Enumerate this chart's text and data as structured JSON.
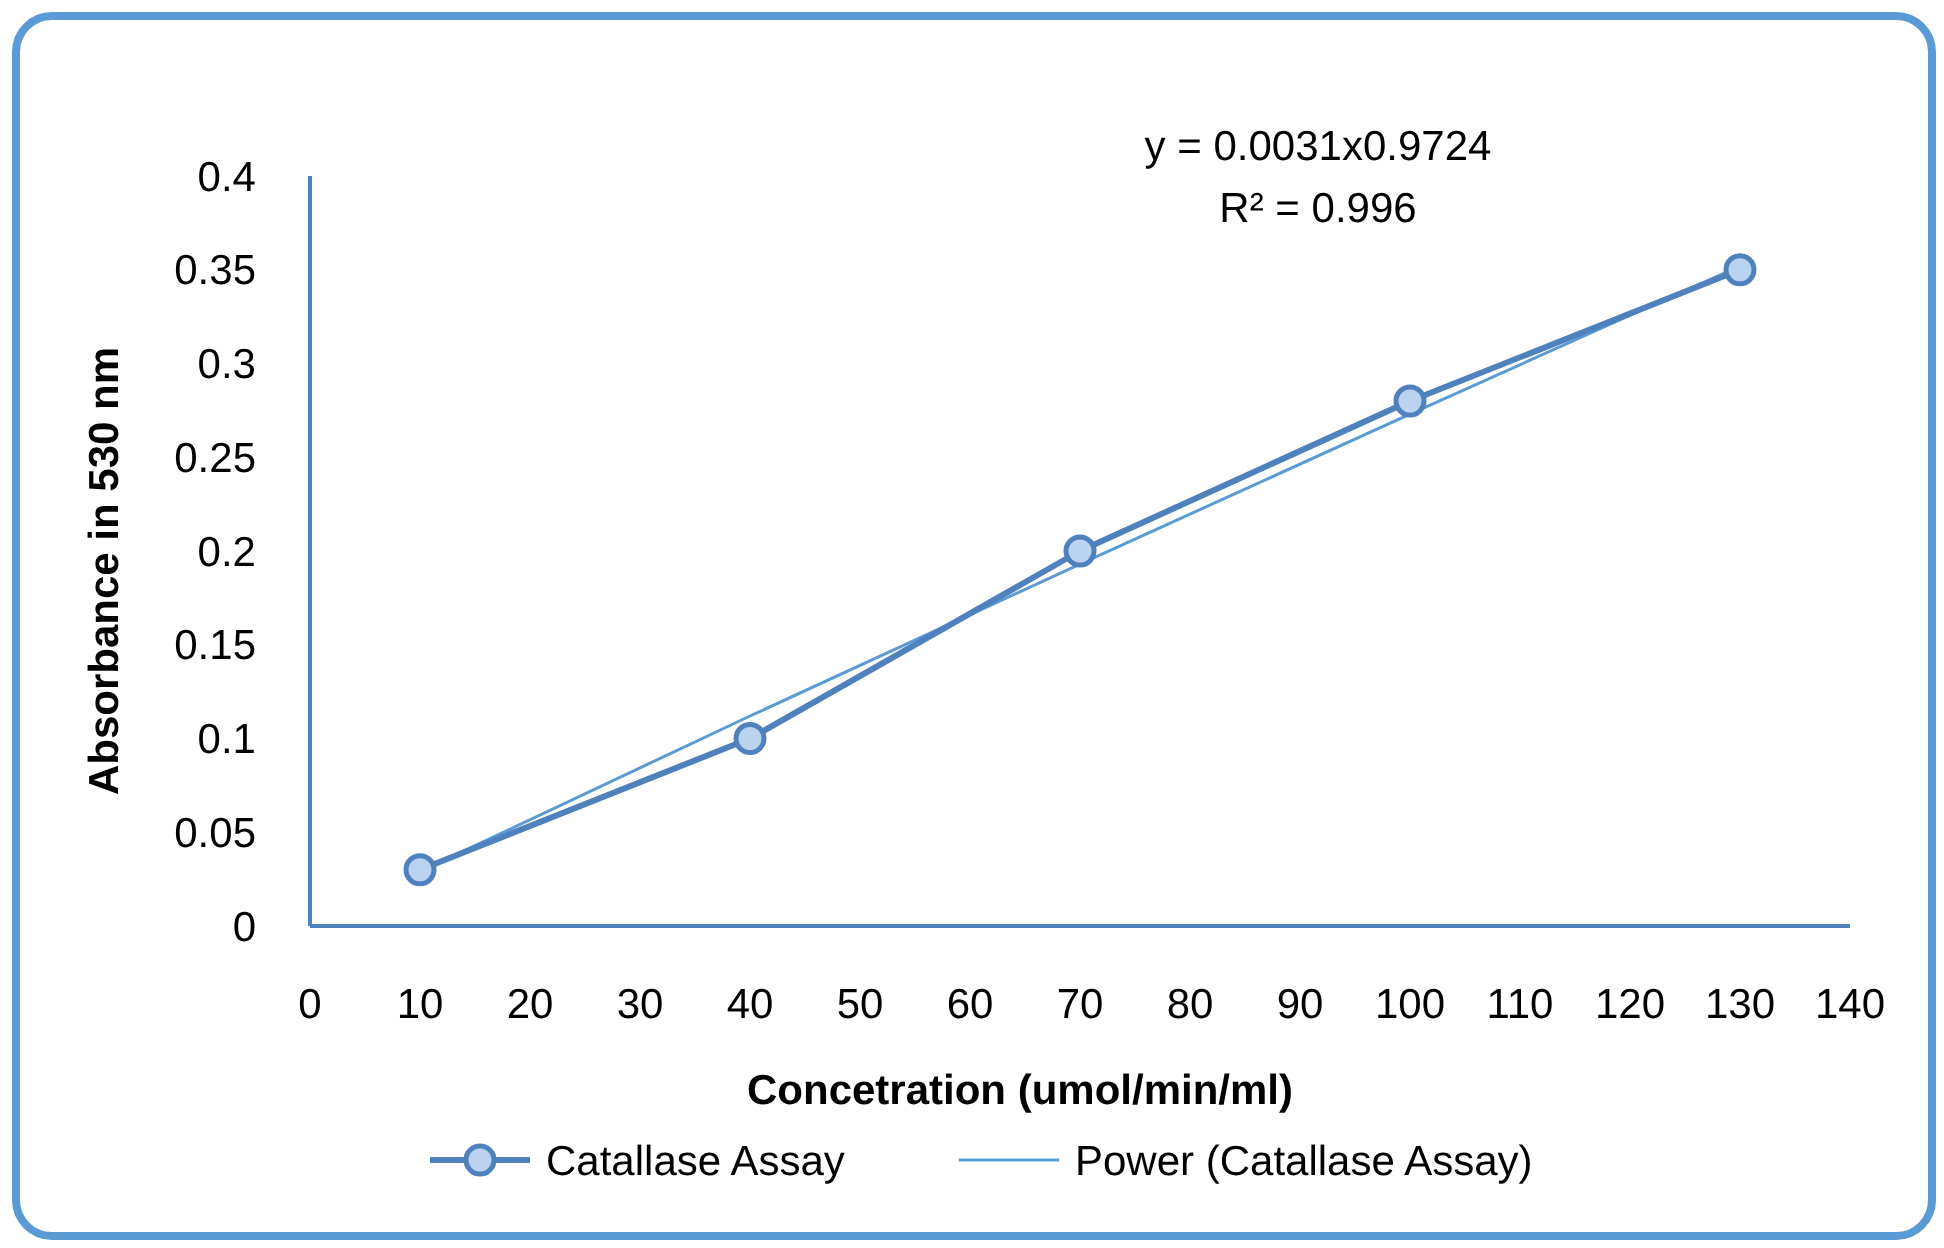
{
  "chart_data": {
    "type": "line",
    "xlabel": "Concetration (umol/min/ml)",
    "ylabel": "Absorbance in 530 nm",
    "annotations": [
      "y = 0.0031x0.9724",
      "R² = 0.996"
    ],
    "x": [
      10,
      40,
      70,
      100,
      130
    ],
    "series": [
      {
        "name": "Catallase Assay",
        "color": "#4f81bd",
        "values": [
          0.03,
          0.1,
          0.2,
          0.28,
          0.35
        ],
        "marker": "circle",
        "line_style": "solid"
      },
      {
        "name": "Power (Catallase Assay)",
        "color": "#5b9bd5",
        "values": [
          0.029,
          0.112,
          0.193,
          0.273,
          0.352
        ],
        "marker": "none",
        "line_style": "solid"
      }
    ],
    "xlim": [
      0,
      140
    ],
    "xticks": [
      0,
      10,
      20,
      30,
      40,
      50,
      60,
      70,
      80,
      90,
      100,
      110,
      120,
      130,
      140
    ],
    "ylim": [
      0,
      0.4
    ],
    "yticks": [
      {
        "value": 0,
        "label": "0"
      },
      {
        "value": 0.05,
        "label": "0.05"
      },
      {
        "value": 0.1,
        "label": "0.1"
      },
      {
        "value": 0.15,
        "label": "0.15"
      },
      {
        "value": 0.2,
        "label": "0.2"
      },
      {
        "value": 0.25,
        "label": "0.25"
      },
      {
        "value": 0.3,
        "label": "0.3"
      },
      {
        "value": 0.35,
        "label": "0.35"
      },
      {
        "value": 0.4,
        "label": "0.4"
      }
    ],
    "grid": false,
    "legend": "bottom"
  }
}
